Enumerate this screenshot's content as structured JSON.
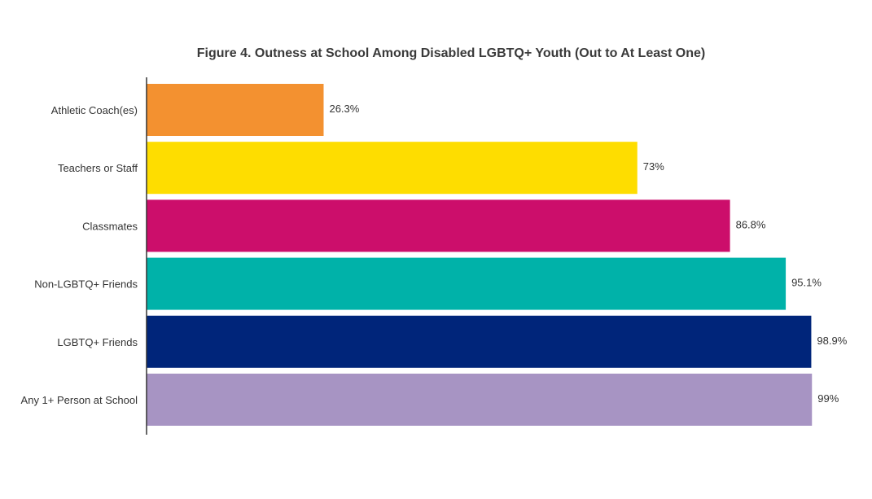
{
  "chart_data": {
    "type": "bar",
    "orientation": "horizontal",
    "title": "Figure 4. Outness at School Among Disabled LGBTQ+ Youth (Out to At Least One)",
    "categories": [
      "Athletic Coach(es)",
      "Teachers or Staff",
      "Classmates",
      "Non-LGBTQ+ Friends",
      "LGBTQ+ Friends",
      "Any 1+ Person at School"
    ],
    "values": [
      26.3,
      73,
      86.8,
      95.1,
      98.9,
      99
    ],
    "value_labels": [
      "26.3%",
      "73%",
      "86.8%",
      "95.1%",
      "98.9%",
      "99%"
    ],
    "colors": [
      "#f39130",
      "#fedd00",
      "#cc0e6b",
      "#00b2a9",
      "#00257a",
      "#a794c3"
    ],
    "xlim": [
      0,
      100
    ],
    "grid": false,
    "legend": "none"
  }
}
